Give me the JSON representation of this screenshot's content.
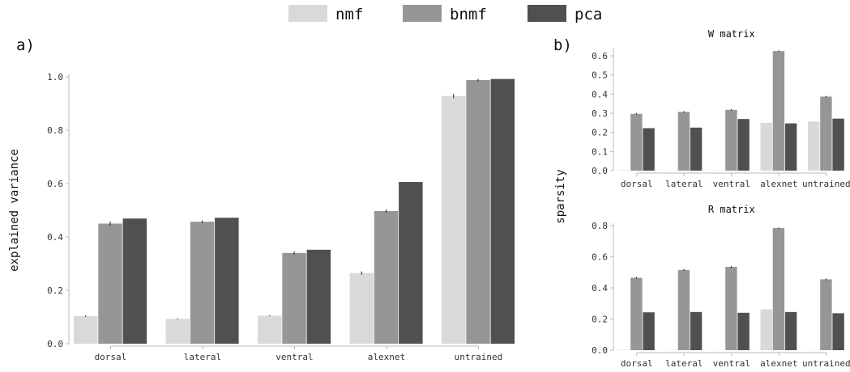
{
  "legend": {
    "placement": "top-center",
    "entries": [
      {
        "label": "nmf",
        "color": "#d9d9d9"
      },
      {
        "label": "bnmf",
        "color": "#969696"
      },
      {
        "label": "pca",
        "color": "#505050"
      }
    ]
  },
  "chart_data": [
    {
      "type": "bar",
      "panel_label": "a)",
      "title": "",
      "xlabel": "",
      "ylabel": "explained variance",
      "ylim": [
        0,
        1.0
      ],
      "yticks": [
        "0.0",
        "0.2",
        "0.4",
        "0.6",
        "0.8",
        "1.0"
      ],
      "categories": [
        "dorsal",
        "lateral",
        "ventral",
        "alexnet",
        "untrained"
      ],
      "series": [
        {
          "name": "nmf",
          "color": "#d9d9d9",
          "values": [
            0.103,
            0.093,
            0.105,
            0.265,
            0.928
          ],
          "errors": [
            0.003,
            0.002,
            0.002,
            0.006,
            0.008
          ]
        },
        {
          "name": "bnmf",
          "color": "#969696",
          "values": [
            0.45,
            0.457,
            0.34,
            0.497,
            0.988
          ],
          "errors": [
            0.008,
            0.005,
            0.006,
            0.006,
            0.005
          ]
        },
        {
          "name": "pca",
          "color": "#505050",
          "values": [
            0.469,
            0.472,
            0.352,
            0.606,
            0.992
          ],
          "errors": [
            0,
            0,
            0,
            0,
            0
          ]
        }
      ],
      "grid": false
    },
    {
      "type": "bar",
      "panel_label": "b)",
      "title": "W matrix",
      "xlabel": "",
      "ylabel": "sparsity",
      "ylim": [
        0,
        0.63
      ],
      "yticks": [
        "0.0",
        "0.1",
        "0.2",
        "0.3",
        "0.4",
        "0.5",
        "0.6"
      ],
      "categories": [
        "dorsal",
        "lateral",
        "ventral",
        "alexnet",
        "untrained"
      ],
      "series": [
        {
          "name": "nmf",
          "color": "#d9d9d9",
          "values": [
            0.003,
            0.001,
            0.001,
            0.25,
            0.257
          ],
          "errors": [
            0,
            0,
            0,
            0,
            0
          ]
        },
        {
          "name": "bnmf",
          "color": "#969696",
          "values": [
            0.297,
            0.307,
            0.318,
            0.625,
            0.387
          ],
          "errors": [
            0.004,
            0.004,
            0.004,
            0.003,
            0.004
          ]
        },
        {
          "name": "pca",
          "color": "#505050",
          "values": [
            0.222,
            0.225,
            0.27,
            0.247,
            0.272
          ],
          "errors": [
            0,
            0,
            0,
            0,
            0
          ]
        }
      ],
      "grid": false
    },
    {
      "type": "bar",
      "panel_label": "",
      "title": "R matrix",
      "xlabel": "",
      "ylabel": "",
      "ylim": [
        0,
        0.8
      ],
      "yticks": [
        "0.0",
        "0.2",
        "0.4",
        "0.6",
        "0.8"
      ],
      "categories": [
        "dorsal",
        "lateral",
        "ventral",
        "alexnet",
        "untrained"
      ],
      "series": [
        {
          "name": "nmf",
          "color": "#d9d9d9",
          "values": [
            0.003,
            0.001,
            0.001,
            0.262,
            0.001
          ],
          "errors": [
            0,
            0,
            0,
            0,
            0
          ]
        },
        {
          "name": "bnmf",
          "color": "#969696",
          "values": [
            0.465,
            0.515,
            0.535,
            0.785,
            0.455
          ],
          "errors": [
            0.006,
            0.006,
            0.006,
            0.004,
            0.006
          ]
        },
        {
          "name": "pca",
          "color": "#505050",
          "values": [
            0.243,
            0.245,
            0.24,
            0.245,
            0.237
          ],
          "errors": [
            0,
            0,
            0,
            0,
            0
          ]
        }
      ],
      "grid": false
    }
  ]
}
